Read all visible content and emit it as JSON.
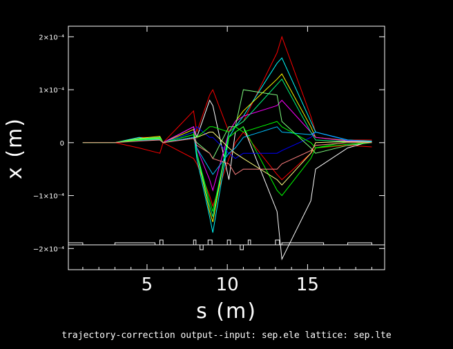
{
  "chart_data": {
    "type": "line",
    "title": "",
    "caption": "trajectory-correction output--input: sep.ele  lattice: sep.lte",
    "xlabel": "s (m)",
    "ylabel": "x (m)",
    "xlim": [
      0.1,
      19.8
    ],
    "ylim": [
      -0.00024,
      0.00022
    ],
    "xticks": [
      {
        "v": 5,
        "label": "5"
      },
      {
        "v": 10,
        "label": "10"
      },
      {
        "v": 15,
        "label": "15"
      }
    ],
    "yticks": [
      {
        "v": 0.0002,
        "label": "2×10⁻⁴"
      },
      {
        "v": 0.0001,
        "label": "1×10⁻⁴"
      },
      {
        "v": 0,
        "label": "0"
      },
      {
        "v": -0.0001,
        "label": "−1×10⁻⁴"
      },
      {
        "v": -0.0002,
        "label": "−2×10⁻⁴"
      }
    ],
    "grid": false,
    "x": [
      1.0,
      3.0,
      4.5,
      5.8,
      6.0,
      7.9,
      8.1,
      8.9,
      9.1,
      10.1,
      10.5,
      11.0,
      13.1,
      13.4,
      15.2,
      15.5,
      17.5,
      19.0
    ],
    "series": [
      {
        "color": "#ff0000",
        "values": [
          0,
          0,
          1e-05,
          1e-05,
          0,
          6e-05,
          2e-05,
          9e-05,
          0.0001,
          2e-05,
          3e-05,
          4e-05,
          0.00017,
          0.0002,
          5e-05,
          2e-05,
          5e-06,
          5e-06
        ]
      },
      {
        "color": "#ff0000",
        "values": [
          0,
          0,
          -1e-05,
          -2e-05,
          0,
          -3e-05,
          -4e-05,
          -0.0001,
          -0.00012,
          -3e-05,
          0,
          2e-05,
          -6e-05,
          -7e-05,
          -2e-05,
          -1e-05,
          -5e-06,
          -8e-06
        ]
      },
      {
        "color": "#00ffff",
        "values": [
          0,
          0,
          1e-05,
          5e-06,
          0,
          2e-05,
          -3e-05,
          -0.00014,
          -0.00017,
          1e-05,
          3e-05,
          5e-05,
          0.00015,
          0.00016,
          4e-05,
          2e-05,
          5e-06,
          3e-06
        ]
      },
      {
        "color": "#ffffff",
        "values": [
          0,
          0,
          5e-06,
          8e-06,
          0,
          3e-05,
          1e-05,
          8e-05,
          7e-05,
          -7e-05,
          2e-05,
          3e-05,
          -0.00013,
          -0.00022,
          -0.00011,
          -5e-05,
          -1e-05,
          3e-06
        ]
      },
      {
        "color": "#ffff00",
        "values": [
          0,
          0,
          8e-06,
          1.2e-05,
          0,
          2.5e-05,
          -2e-05,
          -0.00013,
          -0.00015,
          2e-05,
          4e-05,
          6e-05,
          0.00012,
          0.00013,
          3e-05,
          1e-05,
          4e-06,
          2e-06
        ]
      },
      {
        "color": "#00ff00",
        "values": [
          0,
          0,
          6e-06,
          9e-06,
          0,
          2e-05,
          -2e-05,
          -0.00011,
          -0.00013,
          1e-05,
          2e-05,
          3e-05,
          -9e-05,
          -0.0001,
          -3e-05,
          -1e-05,
          2e-06,
          2e-06
        ]
      },
      {
        "color": "#0000ff",
        "values": [
          0,
          0,
          4e-06,
          7e-06,
          0,
          2e-05,
          3e-05,
          1e-05,
          1e-05,
          -2e-05,
          -3e-05,
          -2e-05,
          -2e-05,
          -1.5e-05,
          1e-05,
          2e-05,
          4e-06,
          1e-06
        ]
      },
      {
        "color": "#ff00ff",
        "values": [
          0,
          0,
          5e-06,
          8e-06,
          0,
          3e-05,
          -1e-05,
          -7e-05,
          -9e-05,
          2e-05,
          4e-05,
          5e-05,
          7e-05,
          8e-05,
          2e-05,
          1e-05,
          3e-06,
          2e-06
        ]
      },
      {
        "color": "#00ff80",
        "values": [
          0,
          0,
          7e-06,
          1e-05,
          0,
          1.5e-05,
          -2e-05,
          -0.00012,
          -0.00014,
          2e-05,
          3e-05,
          4e-05,
          0.00011,
          0.00012,
          2e-05,
          5e-06,
          2e-06,
          1e-06
        ]
      },
      {
        "color": "#80ff80",
        "values": [
          0,
          0,
          6e-06,
          9e-06,
          0,
          1e-05,
          0,
          -2e-05,
          -3e-05,
          3e-05,
          3e-05,
          0.0001,
          9e-05,
          4e-05,
          -1e-05,
          -2e-05,
          -5e-06,
          0
        ]
      },
      {
        "color": "#ffff80",
        "values": [
          0,
          0,
          5e-06,
          7e-06,
          0,
          1e-05,
          1e-05,
          2e-05,
          2e-05,
          -1e-05,
          -2e-05,
          -3e-05,
          -7e-05,
          -8e-05,
          -2e-05,
          0,
          2e-06,
          1e-06
        ]
      },
      {
        "color": "#00c0ff",
        "values": [
          0,
          0,
          4e-06,
          6e-06,
          0,
          1e-05,
          -1e-05,
          -5e-05,
          -6e-05,
          -2e-05,
          -1e-05,
          1e-05,
          3e-05,
          2e-05,
          1.5e-05,
          2e-05,
          5e-06,
          2e-06
        ]
      },
      {
        "color": "#00ff00",
        "values": [
          0,
          0,
          5e-06,
          8e-06,
          0,
          1.5e-05,
          1e-05,
          3e-05,
          3e-05,
          2e-05,
          3e-05,
          2e-05,
          4e-05,
          3e-05,
          0,
          -1e-05,
          -3e-06,
          0
        ]
      },
      {
        "color": "#ff8080",
        "values": [
          0,
          0,
          3e-06,
          5e-06,
          0,
          8e-06,
          -5e-06,
          -2e-05,
          -3e-05,
          -4e-05,
          -6e-05,
          -5e-05,
          -5e-05,
          -4e-05,
          -1.5e-05,
          -5e-06,
          0,
          0
        ]
      }
    ],
    "lattice": [
      {
        "type": "bar",
        "s0": 0.1,
        "s1": 1.0
      },
      {
        "type": "bar",
        "s0": 3.0,
        "s1": 5.5
      },
      {
        "type": "quad_up",
        "s0": 5.8,
        "s1": 6.0
      },
      {
        "type": "quad_up",
        "s0": 7.9,
        "s1": 8.05
      },
      {
        "type": "quad_dn",
        "s0": 8.3,
        "s1": 8.5
      },
      {
        "type": "quad_up",
        "s0": 8.8,
        "s1": 9.05
      },
      {
        "type": "quad_up",
        "s0": 10.0,
        "s1": 10.2
      },
      {
        "type": "quad_dn",
        "s0": 10.8,
        "s1": 11.0
      },
      {
        "type": "quad_up",
        "s0": 11.3,
        "s1": 11.45
      },
      {
        "type": "quad_up",
        "s0": 13.0,
        "s1": 13.25
      },
      {
        "type": "bar",
        "s0": 13.4,
        "s1": 16.0
      },
      {
        "type": "bar",
        "s0": 17.5,
        "s1": 19.0
      }
    ]
  }
}
